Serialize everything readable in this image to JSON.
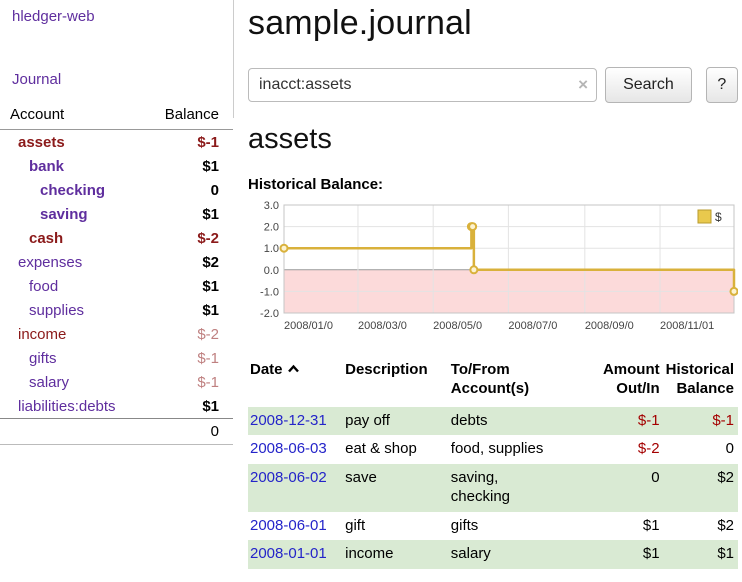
{
  "app": {
    "brand": "hledger-web",
    "nav_journal": "Journal"
  },
  "sidebar": {
    "accounts_table": {
      "header_account": "Account",
      "header_balance": "Balance",
      "rows": [
        {
          "name": "assets",
          "balance": "$-1"
        },
        {
          "name": "bank",
          "balance": "$1"
        },
        {
          "name": "checking",
          "balance": "0"
        },
        {
          "name": "saving",
          "balance": "$1"
        },
        {
          "name": "cash",
          "balance": "$-2"
        },
        {
          "name": "expenses",
          "balance": "$2"
        },
        {
          "name": "food",
          "balance": "$1"
        },
        {
          "name": "supplies",
          "balance": "$1"
        },
        {
          "name": "income",
          "balance": "$-2"
        },
        {
          "name": "gifts",
          "balance": "$-1"
        },
        {
          "name": "salary",
          "balance": "$-1"
        },
        {
          "name": "liabilities:debts",
          "balance": "$1"
        }
      ],
      "total": "0"
    }
  },
  "main": {
    "title": "sample.journal",
    "search": {
      "value": "inacct:assets",
      "clear_label": "×",
      "search_button": "Search",
      "help_button": "?"
    },
    "account_heading": "assets",
    "chart_title": "Historical Balance:"
  },
  "chart_data": {
    "type": "line",
    "step": true,
    "title": "Historical Balance",
    "legend": {
      "position": "top-right",
      "entries": [
        "$"
      ]
    },
    "x_range": [
      "2008-01-01",
      "2008-12-31"
    ],
    "ylim": [
      -2,
      3
    ],
    "yticks": [
      3.0,
      2.0,
      1.0,
      0.0,
      -1.0,
      -2.0
    ],
    "ytick_labels": [
      "3.0",
      "2.0",
      "1.0",
      "0.0",
      "-1.0",
      "-2.0"
    ],
    "xticks": [
      {
        "date": "2008-01-01",
        "label": "2008/01/0"
      },
      {
        "date": "2008-03-01",
        "label": "2008/03/0"
      },
      {
        "date": "2008-05-01",
        "label": "2008/05/0"
      },
      {
        "date": "2008-07-01",
        "label": "2008/07/0"
      },
      {
        "date": "2008-09-01",
        "label": "2008/09/0"
      },
      {
        "date": "2008-11-01",
        "label": "2008/11/01"
      }
    ],
    "series": [
      {
        "name": "$",
        "points": [
          {
            "x": "2008-01-01",
            "y": 1
          },
          {
            "x": "2008-06-01",
            "y": 2
          },
          {
            "x": "2008-06-02",
            "y": 2
          },
          {
            "x": "2008-06-03",
            "y": 0
          },
          {
            "x": "2008-12-31",
            "y": -1
          }
        ]
      }
    ],
    "colors": {
      "line": "#d9b13b",
      "marker_fill": "#fdf3d0",
      "negative_region": "#fcdada",
      "grid": "#e3e3e3",
      "zero_line": "#999999",
      "legend_fill": "#e9c94d",
      "legend_border": "#b89b2e"
    },
    "grid": true
  },
  "register": {
    "headers": {
      "date": "Date",
      "description": "Description",
      "accounts": "To/From\nAccount(s)",
      "amount": "Amount\nOut/In",
      "balance": "Historical\nBalance"
    },
    "sort": {
      "column": "date",
      "direction": "asc"
    },
    "rows": [
      {
        "date": "2008-12-31",
        "description": "pay off",
        "accounts": "debts",
        "amount": "$-1",
        "balance": "$-1"
      },
      {
        "date": "2008-06-03",
        "description": "eat & shop",
        "accounts": "food, supplies",
        "amount": "$-2",
        "balance": "0"
      },
      {
        "date": "2008-06-02",
        "description": "save",
        "accounts": "saving,\nchecking",
        "amount": "0",
        "balance": "$2"
      },
      {
        "date": "2008-06-01",
        "description": "gift",
        "accounts": "gifts",
        "amount": "$1",
        "balance": "$2"
      },
      {
        "date": "2008-01-01",
        "description": "income",
        "accounts": "salary",
        "amount": "$1",
        "balance": "$1"
      }
    ]
  }
}
